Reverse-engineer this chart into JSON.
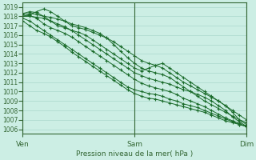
{
  "title": "Pression niveau de la mer( hPa )",
  "bg_color": "#cceee4",
  "grid_color": "#aad8cc",
  "line_color": "#1a6b2a",
  "axis_color": "#336633",
  "ylim": [
    1005.5,
    1019.5
  ],
  "yticks": [
    1006,
    1007,
    1008,
    1009,
    1010,
    1011,
    1012,
    1013,
    1014,
    1015,
    1016,
    1017,
    1018,
    1019
  ],
  "xtick_labels": [
    "Ven",
    "Sam",
    "Dim"
  ],
  "xtick_positions": [
    0,
    16,
    32
  ],
  "num_points": 33,
  "series": [
    [
      1018.0,
      1018.0,
      1017.9,
      1017.8,
      1017.5,
      1017.2,
      1016.9,
      1016.5,
      1016.0,
      1015.5,
      1015.0,
      1014.5,
      1014.0,
      1013.5,
      1013.0,
      1012.5,
      1012.0,
      1011.7,
      1011.4,
      1011.2,
      1011.0,
      1010.8,
      1010.5,
      1010.2,
      1010.0,
      1009.7,
      1009.4,
      1009.0,
      1008.5,
      1008.0,
      1007.3,
      1006.8,
      1006.3
    ],
    [
      1018.2,
      1018.3,
      1018.2,
      1018.0,
      1017.9,
      1017.7,
      1017.5,
      1017.2,
      1017.0,
      1016.8,
      1016.5,
      1016.2,
      1015.7,
      1015.0,
      1014.3,
      1013.6,
      1013.0,
      1012.5,
      1012.2,
      1012.0,
      1011.8,
      1011.5,
      1011.0,
      1010.5,
      1010.0,
      1009.5,
      1009.0,
      1008.6,
      1008.2,
      1007.8,
      1007.4,
      1007.0,
      1006.7
    ],
    [
      1018.0,
      1018.1,
      1017.8,
      1017.2,
      1016.8,
      1016.5,
      1016.2,
      1015.8,
      1015.3,
      1014.8,
      1014.3,
      1013.8,
      1013.3,
      1012.8,
      1012.3,
      1011.8,
      1011.3,
      1010.9,
      1010.6,
      1010.4,
      1010.2,
      1010.0,
      1009.7,
      1009.3,
      1009.0,
      1008.7,
      1008.4,
      1008.0,
      1007.6,
      1007.2,
      1006.9,
      1006.6,
      1006.3
    ],
    [
      1017.8,
      1017.5,
      1017.0,
      1016.5,
      1016.0,
      1015.5,
      1015.0,
      1014.5,
      1014.0,
      1013.5,
      1013.0,
      1012.5,
      1012.0,
      1011.5,
      1011.0,
      1010.5,
      1010.2,
      1010.0,
      1009.8,
      1009.7,
      1009.5,
      1009.2,
      1009.0,
      1008.7,
      1008.5,
      1008.3,
      1008.0,
      1007.7,
      1007.4,
      1007.1,
      1006.8,
      1006.5,
      1006.3
    ],
    [
      1017.5,
      1017.0,
      1016.5,
      1016.2,
      1015.8,
      1015.3,
      1014.8,
      1014.2,
      1013.7,
      1013.2,
      1012.7,
      1012.2,
      1011.7,
      1011.2,
      1010.7,
      1010.2,
      1009.8,
      1009.5,
      1009.3,
      1009.2,
      1009.0,
      1008.8,
      1008.6,
      1008.4,
      1008.2,
      1008.0,
      1007.8,
      1007.5,
      1007.2,
      1006.9,
      1006.7,
      1006.5,
      1006.3
    ],
    [
      1018.3,
      1018.5,
      1018.4,
      1018.0,
      1017.5,
      1017.0,
      1016.8,
      1016.5,
      1016.3,
      1016.0,
      1015.5,
      1015.0,
      1014.5,
      1014.0,
      1013.5,
      1013.0,
      1012.5,
      1012.2,
      1012.5,
      1012.8,
      1013.0,
      1012.5,
      1012.0,
      1011.5,
      1011.0,
      1010.5,
      1010.0,
      1009.5,
      1009.0,
      1008.5,
      1008.0,
      1007.5,
      1007.0
    ],
    [
      1018.0,
      1018.2,
      1018.5,
      1018.8,
      1018.5,
      1018.0,
      1017.5,
      1017.0,
      1016.8,
      1016.6,
      1016.3,
      1016.0,
      1015.7,
      1015.3,
      1014.8,
      1014.3,
      1013.8,
      1013.3,
      1013.0,
      1012.8,
      1012.5,
      1012.0,
      1011.5,
      1011.0,
      1010.6,
      1010.2,
      1009.8,
      1009.4,
      1009.0,
      1008.5,
      1007.8,
      1007.0,
      1006.5
    ]
  ]
}
